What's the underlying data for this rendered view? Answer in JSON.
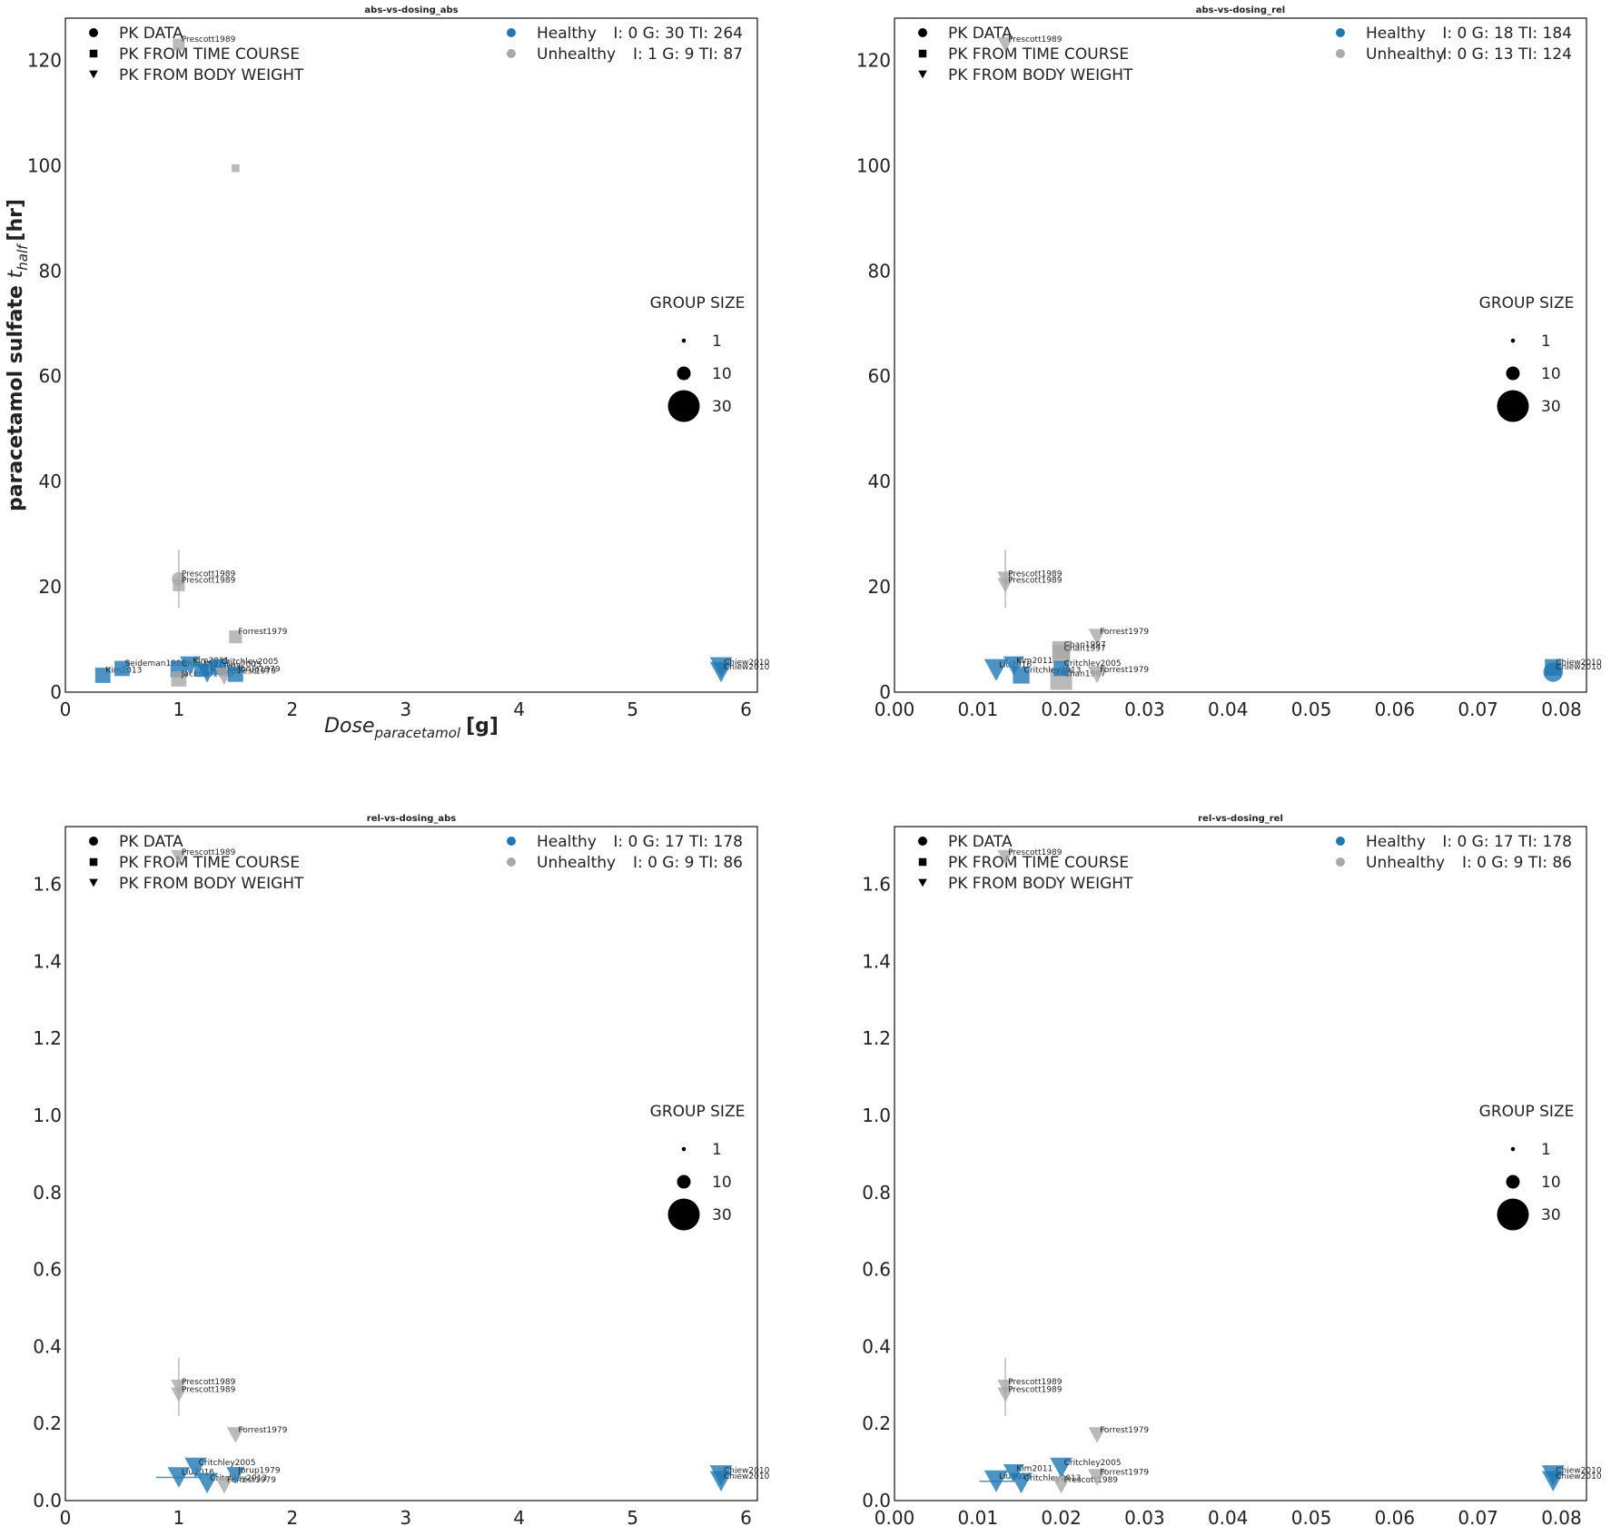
{
  "chart_data": [
    {
      "type": "scatter",
      "title": "abs-vs-dosing_abs",
      "xlabel": "Dose_paracetamol [g]",
      "ylabel": "paracetamol sulfate t_half [hr]",
      "xlim": [
        0,
        6.1
      ],
      "ylim": [
        0,
        128
      ],
      "xticks": [
        0,
        1,
        2,
        3,
        4,
        5,
        6
      ],
      "yticks": [
        0,
        20,
        40,
        60,
        80,
        100,
        120
      ],
      "xtick_labels": [
        "0",
        "1",
        "2",
        "3",
        "4",
        "5",
        "6"
      ],
      "ytick_labels": [
        "0",
        "20",
        "40",
        "60",
        "80",
        "100",
        "120"
      ],
      "marker_legend": [
        "PK DATA",
        "PK FROM TIME COURSE",
        "PK FROM BODY WEIGHT"
      ],
      "group_legend": [
        {
          "name": "Healthy",
          "stats": "I: 0    G: 30 TI: 264",
          "color": "#1f78b4"
        },
        {
          "name": "Unhealthy",
          "stats": "I: 1    G: 9   TI: 87",
          "color": "#a9a9a9"
        }
      ],
      "size_legend": {
        "title": "GROUP SIZE",
        "values": [
          1,
          10,
          30
        ],
        "labels": [
          "1",
          "10",
          "30"
        ]
      },
      "points": [
        {
          "x": 1.0,
          "y": 123,
          "marker": "square",
          "group": "Unhealthy",
          "n": 4,
          "label": "Prescott1989"
        },
        {
          "x": 1.5,
          "y": 99.5,
          "marker": "square",
          "group": "Unhealthy",
          "n": 1,
          "label": ""
        },
        {
          "x": 1.0,
          "y": 21.5,
          "marker": "circle",
          "group": "Unhealthy",
          "n": 4,
          "label": "Prescott1989",
          "yerr": 5.5
        },
        {
          "x": 1.0,
          "y": 20.3,
          "marker": "square",
          "group": "Unhealthy",
          "n": 4,
          "label": "Prescott1989"
        },
        {
          "x": 1.5,
          "y": 10.5,
          "marker": "square",
          "group": "Unhealthy",
          "n": 5,
          "label": "Forrest1979"
        },
        {
          "x": 0.33,
          "y": 3.2,
          "marker": "square",
          "group": "Healthy",
          "n": 8,
          "label": "Kim2013"
        },
        {
          "x": 0.5,
          "y": 4.5,
          "marker": "square",
          "group": "Healthy",
          "n": 8,
          "label": "Seideman1980"
        },
        {
          "x": 1.0,
          "y": 4.4,
          "marker": "square",
          "group": "Healthy",
          "n": 10,
          "label": "Chan1997"
        },
        {
          "x": 1.0,
          "y": 2.5,
          "marker": "square",
          "group": "Unhealthy",
          "n": 8,
          "label": "Jackson1980"
        },
        {
          "x": 1.1,
          "y": 5.0,
          "marker": "triangle",
          "group": "Healthy",
          "n": 8,
          "label": "Kim2011"
        },
        {
          "x": 1.2,
          "y": 4.2,
          "marker": "square",
          "group": "Healthy",
          "n": 6,
          "label": "Critchley2005"
        },
        {
          "x": 1.25,
          "y": 3.6,
          "marker": "triangle",
          "group": "Healthy",
          "n": 8,
          "label": "Liu2016"
        },
        {
          "x": 1.35,
          "y": 4.8,
          "marker": "square",
          "group": "Healthy",
          "n": 9,
          "label": "Critchley2005"
        },
        {
          "x": 1.4,
          "y": 3.0,
          "marker": "triangle",
          "group": "Unhealthy",
          "n": 6,
          "label": "Forrest1979"
        },
        {
          "x": 1.5,
          "y": 3.4,
          "marker": "square",
          "group": "Healthy",
          "n": 8,
          "label": "Jorup1979"
        },
        {
          "x": 5.78,
          "y": 4.7,
          "marker": "triangle",
          "group": "Healthy",
          "n": 10,
          "label": "Chiew2010"
        },
        {
          "x": 5.78,
          "y": 3.8,
          "marker": "triangle",
          "group": "Healthy",
          "n": 10,
          "label": "Chiew2010"
        }
      ]
    },
    {
      "type": "scatter",
      "title": "abs-vs-dosing_rel",
      "xlabel": "",
      "ylabel": "",
      "xlim": [
        0,
        0.083
      ],
      "ylim": [
        0,
        128
      ],
      "xticks": [
        0,
        0.01,
        0.02,
        0.03,
        0.04,
        0.05,
        0.06,
        0.07,
        0.08
      ],
      "yticks": [
        0,
        20,
        40,
        60,
        80,
        100,
        120
      ],
      "xtick_labels": [
        "0.00",
        "0.01",
        "0.02",
        "0.03",
        "0.04",
        "0.05",
        "0.06",
        "0.07",
        "0.08"
      ],
      "ytick_labels": [
        "0",
        "20",
        "40",
        "60",
        "80",
        "100",
        "120"
      ],
      "marker_legend": [
        "PK DATA",
        "PK FROM TIME COURSE",
        "PK FROM BODY WEIGHT"
      ],
      "group_legend": [
        {
          "name": "Healthy",
          "stats": "I: 0    G: 18 TI: 184",
          "color": "#1f78b4"
        },
        {
          "name": "Unhealthy",
          "stats": "I: 0    G: 13 TI: 124",
          "color": "#a9a9a9"
        }
      ],
      "size_legend": {
        "title": "GROUP SIZE",
        "values": [
          1,
          10,
          30
        ],
        "labels": [
          "1",
          "10",
          "30"
        ]
      },
      "points": [
        {
          "x": 0.0133,
          "y": 123,
          "marker": "triangle",
          "group": "Unhealthy",
          "n": 4,
          "label": "Prescott1989"
        },
        {
          "x": 0.0133,
          "y": 21.5,
          "marker": "triangle",
          "group": "Unhealthy",
          "n": 4,
          "label": "Prescott1989",
          "yerr": 5.5
        },
        {
          "x": 0.0133,
          "y": 20.3,
          "marker": "triangle",
          "group": "Unhealthy",
          "n": 4,
          "label": "Prescott1989"
        },
        {
          "x": 0.0243,
          "y": 10.5,
          "marker": "triangle",
          "group": "Unhealthy",
          "n": 5,
          "label": "Forrest1979"
        },
        {
          "x": 0.02,
          "y": 8.0,
          "marker": "square",
          "group": "Unhealthy",
          "n": 12,
          "label": "Chan1997"
        },
        {
          "x": 0.02,
          "y": 7.3,
          "marker": "square",
          "group": "Unhealthy",
          "n": 12,
          "label": "Chan1997"
        },
        {
          "x": 0.02,
          "y": 2.5,
          "marker": "square",
          "group": "Unhealthy",
          "n": 20,
          "label": "Chan1997"
        },
        {
          "x": 0.0122,
          "y": 4.2,
          "marker": "triangle",
          "group": "Healthy",
          "n": 12,
          "label": "Liu2016"
        },
        {
          "x": 0.0143,
          "y": 5.0,
          "marker": "triangle",
          "group": "Healthy",
          "n": 8,
          "label": "Kim2011"
        },
        {
          "x": 0.0152,
          "y": 3.2,
          "marker": "square",
          "group": "Healthy",
          "n": 10,
          "label": "Critchley2013"
        },
        {
          "x": 0.02,
          "y": 4.5,
          "marker": "square",
          "group": "Healthy",
          "n": 8,
          "label": "Critchley2005"
        },
        {
          "x": 0.0243,
          "y": 3.3,
          "marker": "triangle",
          "group": "Unhealthy",
          "n": 6,
          "label": "Forrest1979"
        },
        {
          "x": 0.079,
          "y": 4.7,
          "marker": "square",
          "group": "Healthy",
          "n": 10,
          "label": "Chiew2010"
        },
        {
          "x": 0.079,
          "y": 3.8,
          "marker": "circle",
          "group": "Healthy",
          "n": 10,
          "label": "Chiew2010"
        }
      ]
    },
    {
      "type": "scatter",
      "title": "rel-vs-dosing_abs",
      "xlabel": "",
      "ylabel": "",
      "xlim": [
        0,
        6.1
      ],
      "ylim": [
        0,
        1.75
      ],
      "xticks": [
        0,
        1,
        2,
        3,
        4,
        5,
        6
      ],
      "yticks": [
        0,
        0.2,
        0.4,
        0.6,
        0.8,
        1.0,
        1.2,
        1.4,
        1.6
      ],
      "xtick_labels": [
        "0",
        "1",
        "2",
        "3",
        "4",
        "5",
        "6"
      ],
      "ytick_labels": [
        "0.0",
        "0.2",
        "0.4",
        "0.6",
        "0.8",
        "1.0",
        "1.2",
        "1.4",
        "1.6"
      ],
      "marker_legend": [
        "PK DATA",
        "PK FROM TIME COURSE",
        "PK FROM BODY WEIGHT"
      ],
      "group_legend": [
        {
          "name": "Healthy",
          "stats": "I: 0    G: 17 TI: 178",
          "color": "#1f78b4"
        },
        {
          "name": "Unhealthy",
          "stats": "I: 0    G: 9   TI: 86",
          "color": "#a9a9a9"
        }
      ],
      "size_legend": {
        "title": "GROUP SIZE",
        "values": [
          1,
          10,
          30
        ],
        "labels": [
          "1",
          "10",
          "30"
        ]
      },
      "points": [
        {
          "x": 1.0,
          "y": 1.67,
          "marker": "triangle",
          "group": "Unhealthy",
          "n": 4,
          "label": "Prescott1989"
        },
        {
          "x": 1.0,
          "y": 0.295,
          "marker": "triangle",
          "group": "Unhealthy",
          "n": 4,
          "label": "Prescott1989",
          "yerr": 0.075
        },
        {
          "x": 1.0,
          "y": 0.275,
          "marker": "triangle",
          "group": "Unhealthy",
          "n": 4,
          "label": "Prescott1989"
        },
        {
          "x": 1.5,
          "y": 0.17,
          "marker": "triangle",
          "group": "Unhealthy",
          "n": 5,
          "label": "Forrest1979"
        },
        {
          "x": 1.0,
          "y": 0.06,
          "marker": "triangle",
          "group": "Healthy",
          "n": 10,
          "label": "Liu2016",
          "xerr": 0.2
        },
        {
          "x": 1.15,
          "y": 0.085,
          "marker": "triangle",
          "group": "Healthy",
          "n": 10,
          "label": "Critchley2005"
        },
        {
          "x": 1.25,
          "y": 0.045,
          "marker": "triangle",
          "group": "Healthy",
          "n": 10,
          "label": "Critchley2013"
        },
        {
          "x": 1.4,
          "y": 0.04,
          "marker": "triangle",
          "group": "Unhealthy",
          "n": 6,
          "label": "Forrest1979"
        },
        {
          "x": 1.5,
          "y": 0.065,
          "marker": "triangle",
          "group": "Healthy",
          "n": 6,
          "label": "Jorup1979"
        },
        {
          "x": 5.78,
          "y": 0.065,
          "marker": "triangle",
          "group": "Healthy",
          "n": 10,
          "label": "Chiew2010"
        },
        {
          "x": 5.78,
          "y": 0.05,
          "marker": "triangle",
          "group": "Healthy",
          "n": 10,
          "label": "Chiew2010"
        }
      ]
    },
    {
      "type": "scatter",
      "title": "rel-vs-dosing_rel",
      "xlabel": "",
      "ylabel": "",
      "xlim": [
        0,
        0.083
      ],
      "ylim": [
        0,
        1.75
      ],
      "xticks": [
        0,
        0.01,
        0.02,
        0.03,
        0.04,
        0.05,
        0.06,
        0.07,
        0.08
      ],
      "yticks": [
        0,
        0.2,
        0.4,
        0.6,
        0.8,
        1.0,
        1.2,
        1.4,
        1.6
      ],
      "xtick_labels": [
        "0.00",
        "0.01",
        "0.02",
        "0.03",
        "0.04",
        "0.05",
        "0.06",
        "0.07",
        "0.08"
      ],
      "ytick_labels": [
        "0.0",
        "0.2",
        "0.4",
        "0.6",
        "0.8",
        "1.0",
        "1.2",
        "1.4",
        "1.6"
      ],
      "marker_legend": [
        "PK DATA",
        "PK FROM TIME COURSE",
        "PK FROM BODY WEIGHT"
      ],
      "group_legend": [
        {
          "name": "Healthy",
          "stats": "I: 0    G: 17 TI: 178",
          "color": "#1f78b4"
        },
        {
          "name": "Unhealthy",
          "stats": "I: 0    G: 9   TI: 86",
          "color": "#a9a9a9"
        }
      ],
      "size_legend": {
        "title": "GROUP SIZE",
        "values": [
          1,
          10,
          30
        ],
        "labels": [
          "1",
          "10",
          "30"
        ]
      },
      "points": [
        {
          "x": 0.0133,
          "y": 1.67,
          "marker": "triangle",
          "group": "Unhealthy",
          "n": 4,
          "label": "Prescott1989"
        },
        {
          "x": 0.0133,
          "y": 0.295,
          "marker": "triangle",
          "group": "Unhealthy",
          "n": 4,
          "label": "Prescott1989",
          "yerr": 0.075
        },
        {
          "x": 0.0133,
          "y": 0.275,
          "marker": "triangle",
          "group": "Unhealthy",
          "n": 4,
          "label": "Prescott1989"
        },
        {
          "x": 0.0243,
          "y": 0.17,
          "marker": "triangle",
          "group": "Unhealthy",
          "n": 5,
          "label": "Forrest1979"
        },
        {
          "x": 0.0122,
          "y": 0.05,
          "marker": "triangle",
          "group": "Healthy",
          "n": 12,
          "label": "Liu2016",
          "xerr": 0.002
        },
        {
          "x": 0.0143,
          "y": 0.07,
          "marker": "triangle",
          "group": "Healthy",
          "n": 8,
          "label": "Kim2011"
        },
        {
          "x": 0.0152,
          "y": 0.045,
          "marker": "triangle",
          "group": "Healthy",
          "n": 10,
          "label": "Critchley2013"
        },
        {
          "x": 0.02,
          "y": 0.085,
          "marker": "triangle",
          "group": "Healthy",
          "n": 10,
          "label": "Critchley2005"
        },
        {
          "x": 0.02,
          "y": 0.04,
          "marker": "triangle",
          "group": "Unhealthy",
          "n": 6,
          "label": "Prescott1989"
        },
        {
          "x": 0.0243,
          "y": 0.06,
          "marker": "triangle",
          "group": "Unhealthy",
          "n": 6,
          "label": "Forrest1979"
        },
        {
          "x": 0.079,
          "y": 0.065,
          "marker": "triangle",
          "group": "Healthy",
          "n": 10,
          "label": "Chiew2010"
        },
        {
          "x": 0.079,
          "y": 0.05,
          "marker": "triangle",
          "group": "Healthy",
          "n": 10,
          "label": "Chiew2010"
        }
      ]
    }
  ]
}
